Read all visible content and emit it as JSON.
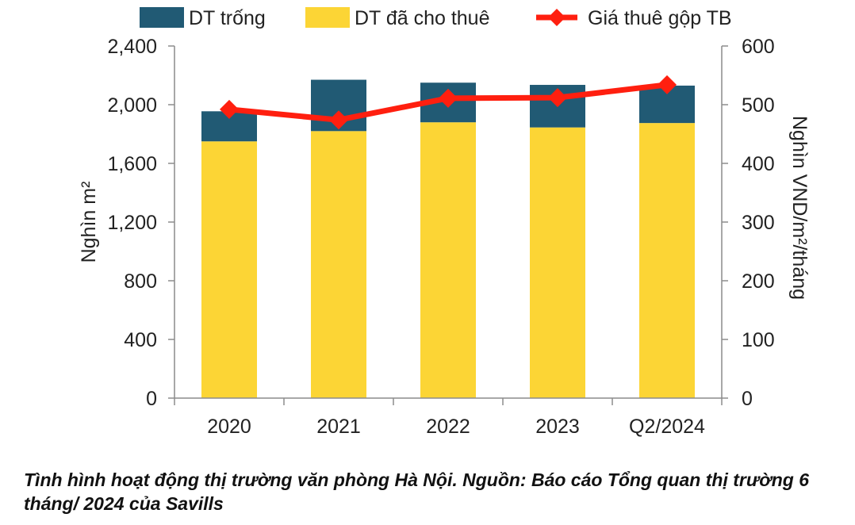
{
  "chart_data": {
    "type": "bar",
    "stacked": true,
    "categories": [
      "2020",
      "2021",
      "2022",
      "2023",
      "Q2/2024"
    ],
    "series": [
      {
        "name": "DT đã cho thuê",
        "axis": "left",
        "color": "#fcd535",
        "values": [
          1750,
          1820,
          1880,
          1845,
          1875
        ]
      },
      {
        "name": "DT trống",
        "axis": "left",
        "color": "#215a74",
        "values": [
          205,
          350,
          270,
          290,
          255
        ]
      },
      {
        "name": "Giá thuê gộp TB",
        "type": "line",
        "axis": "right",
        "color": "#ff1f0f",
        "values": [
          492,
          474,
          511,
          512,
          534
        ]
      }
    ],
    "legend_order": [
      "DT trống",
      "DT đã cho thuê",
      "Giá thuê gộp TB"
    ],
    "ylabel": "Nghìn m²",
    "y2label": "Nghìn VND/m²/tháng",
    "ylim": [
      0,
      2400
    ],
    "y2lim": [
      0,
      600
    ],
    "yticks": [
      "0",
      "400",
      "800",
      "1,200",
      "1,600",
      "2,000",
      "2,400"
    ],
    "y2ticks": [
      "0",
      "100",
      "200",
      "300",
      "400",
      "500",
      "600"
    ],
    "legend_position": "top",
    "grid": false
  },
  "caption": "Tình hình hoạt động thị trường văn phòng Hà Nội. Nguồn: Báo cáo Tổng quan thị trường 6 tháng/ 2024 của Savills"
}
